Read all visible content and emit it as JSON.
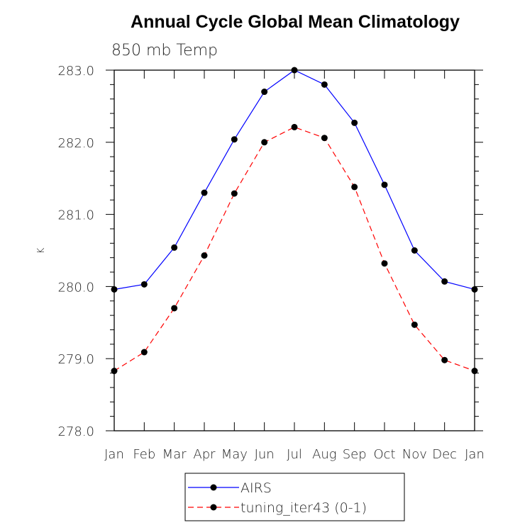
{
  "chart_data": {
    "type": "line",
    "title": "Annual Cycle Global Mean Climatology",
    "subtitle": "850 mb Temp",
    "ylabel": "K",
    "xlabel": "",
    "categories": [
      "Jan",
      "Feb",
      "Mar",
      "Apr",
      "May",
      "Jun",
      "Jul",
      "Aug",
      "Sep",
      "Oct",
      "Nov",
      "Dec",
      "Jan"
    ],
    "ylim": [
      278.0,
      283.0
    ],
    "y_ticks": [
      "278.0",
      "279.0",
      "280.0",
      "281.0",
      "282.0",
      "283.0"
    ],
    "y_tick_values": [
      278.0,
      279.0,
      280.0,
      281.0,
      282.0,
      283.0
    ],
    "y_minor_step": 0.2,
    "grid": false,
    "legend_position": "bottom-center",
    "series": [
      {
        "name": "AIRS",
        "color": "#0000ff",
        "line_style": "solid",
        "marker": "filled-circle",
        "values": [
          279.96,
          280.03,
          280.54,
          281.3,
          282.04,
          282.7,
          283.0,
          282.8,
          282.27,
          281.41,
          280.5,
          280.07,
          279.96
        ]
      },
      {
        "name": "tuning_iter43 (0-1)",
        "color": "#ff0000",
        "line_style": "dashed",
        "marker": "filled-circle",
        "values": [
          278.83,
          279.09,
          279.7,
          280.43,
          281.29,
          282.0,
          282.21,
          282.06,
          281.38,
          280.32,
          279.47,
          278.98,
          278.83
        ]
      }
    ]
  }
}
